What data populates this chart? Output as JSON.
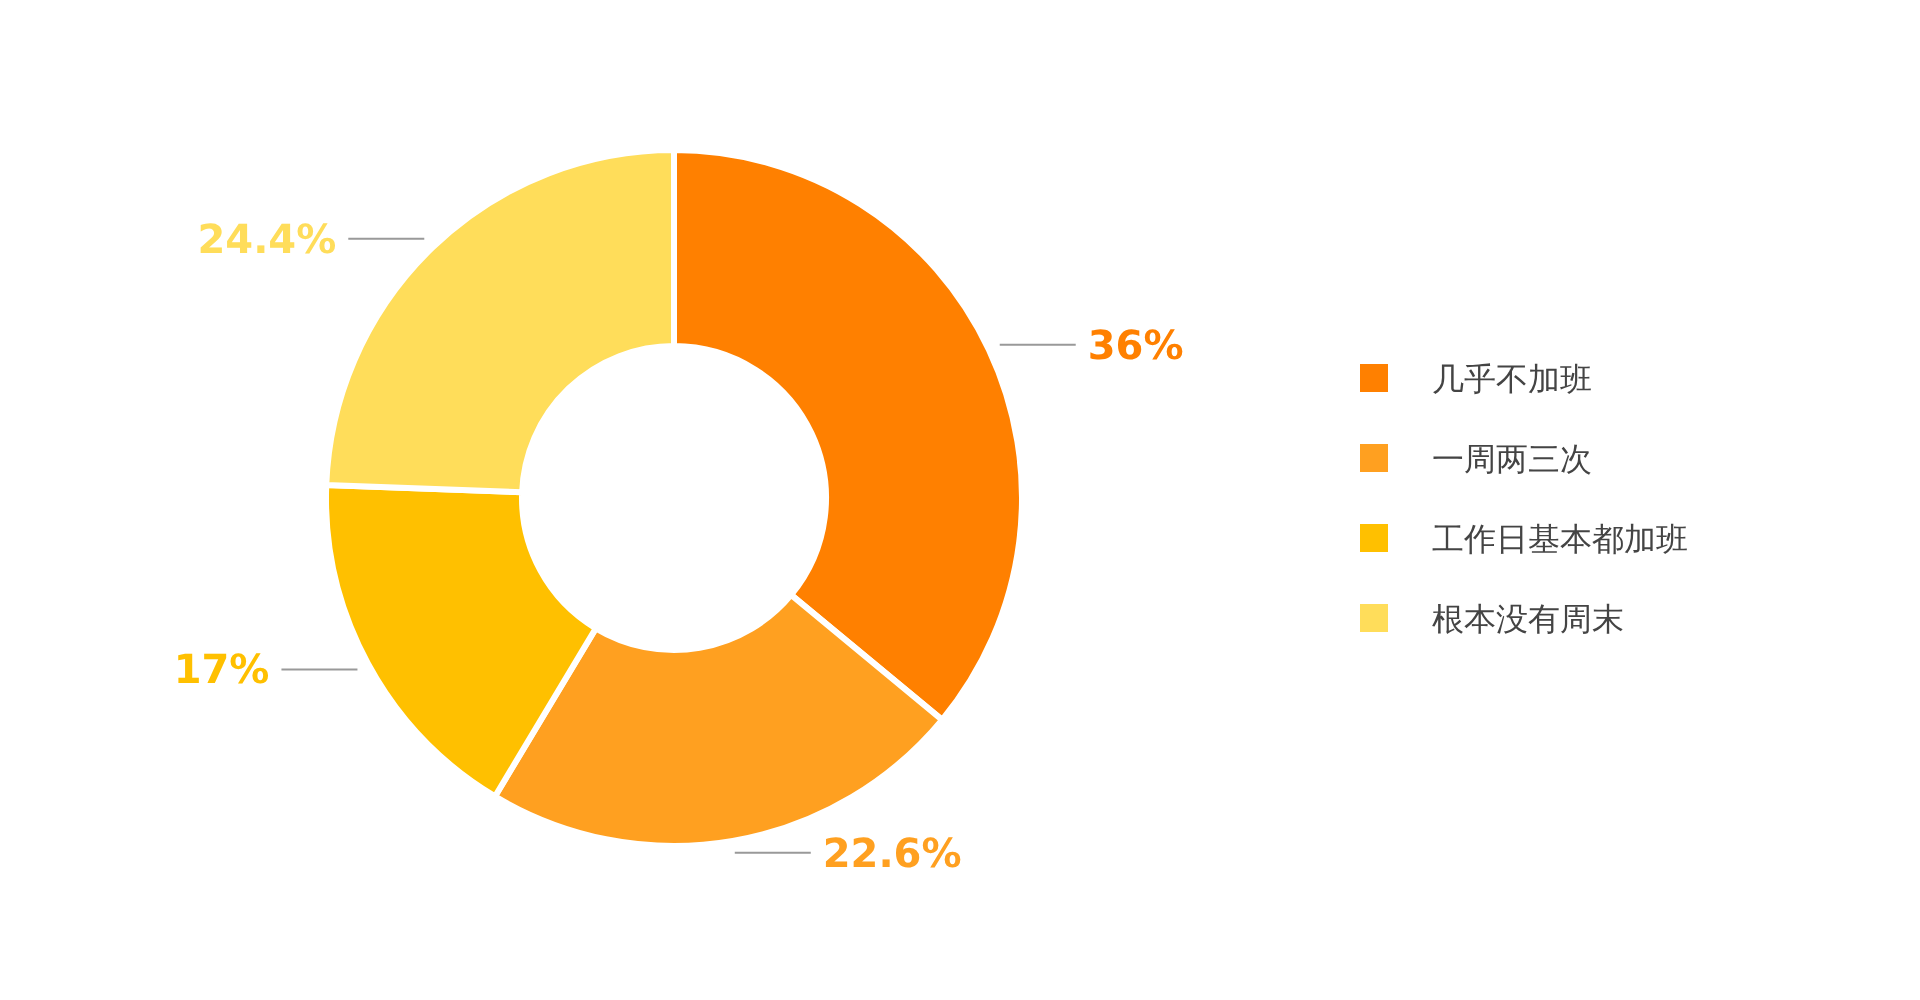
{
  "chart_data": {
    "type": "donut",
    "categories": [
      "几乎不加班",
      "一周两三次",
      "工作日基本都加班",
      "根本没有周末"
    ],
    "values": [
      36,
      22.6,
      17,
      24.4
    ],
    "colors": [
      "#ff8000",
      "#ffa020",
      "#ffc000",
      "#ffdd5a"
    ],
    "value_labels": [
      "36%",
      "22.6%",
      "17%",
      "24.4%"
    ],
    "legend": "right"
  }
}
